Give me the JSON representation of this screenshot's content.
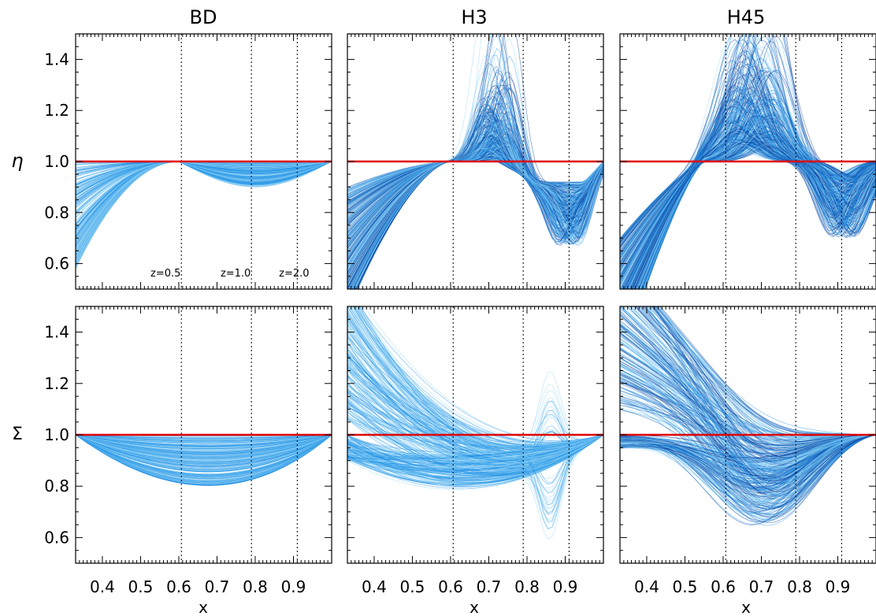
{
  "panels_layout": {
    "rows": [
      "eta",
      "sigma"
    ],
    "cols": [
      "BD",
      "H3",
      "H45"
    ]
  },
  "labels": {
    "col_titles": [
      "BD",
      "H3",
      "H45"
    ],
    "ylabel_top": "η",
    "ylabel_bottom": "Σ",
    "xlabel": "x",
    "redshift_labels": [
      "z=0.5",
      "z=1.0",
      "z=2.0"
    ]
  },
  "colors": {
    "curve_light": "#8fd3f5",
    "curve_mid": "#1e8fe6",
    "curve_dark": "#0a3f9e",
    "reference_line": "#e00000",
    "axis": "#000000"
  },
  "chart_data": [
    {
      "type": "line",
      "panel": "BD-eta",
      "title": "BD",
      "ylabel": "η",
      "xlabel": "",
      "xlim": [
        0.33,
        1.0
      ],
      "ylim": [
        0.5,
        1.5
      ],
      "xticks": [
        0.4,
        0.5,
        0.6,
        0.7,
        0.8,
        0.9
      ],
      "yticks": [
        0.6,
        0.8,
        1.0,
        1.2,
        1.4
      ],
      "redshift_lines_x": [
        0.6067,
        0.79,
        0.91
      ],
      "reference_y": 1.0,
      "model": "BD",
      "series": [
        {
          "x": [
            0.33,
            0.4,
            0.5,
            0.6,
            0.7,
            0.8,
            0.9,
            1.0
          ],
          "y": [
            0.98,
            0.99,
            0.995,
            1.0,
            0.99,
            0.98,
            0.985,
            1.0
          ]
        },
        {
          "x": [
            0.33,
            0.4,
            0.5,
            0.6,
            0.7,
            0.8,
            0.9,
            1.0
          ],
          "y": [
            0.55,
            0.76,
            0.94,
            1.0,
            0.96,
            0.91,
            0.88,
            1.0
          ]
        }
      ]
    },
    {
      "type": "line",
      "panel": "H3-eta",
      "title": "H3",
      "ylabel": "",
      "xlabel": "",
      "xlim": [
        0.33,
        1.0
      ],
      "ylim": [
        0.5,
        1.5
      ],
      "xticks": [
        0.4,
        0.5,
        0.6,
        0.7,
        0.8,
        0.9
      ],
      "yticks": [
        0.6,
        0.8,
        1.0,
        1.2,
        1.4
      ],
      "redshift_lines_x": [
        0.6067,
        0.79,
        0.91
      ],
      "reference_y": 1.0,
      "model": "H3",
      "series": [
        {
          "x": [
            0.33,
            0.45,
            0.55,
            0.6,
            0.7,
            0.8,
            0.9,
            1.0
          ],
          "y": [
            0.5,
            0.75,
            0.94,
            1.0,
            1.05,
            0.95,
            0.88,
            0.93
          ]
        },
        {
          "x": [
            0.33,
            0.45,
            0.55,
            0.6,
            0.7,
            0.8,
            0.9,
            1.0
          ],
          "y": [
            0.6,
            0.85,
            0.97,
            1.0,
            1.33,
            0.8,
            0.55,
            0.75
          ]
        }
      ]
    },
    {
      "type": "line",
      "panel": "H45-eta",
      "title": "H45",
      "ylabel": "",
      "xlabel": "",
      "xlim": [
        0.33,
        1.0
      ],
      "ylim": [
        0.5,
        1.5
      ],
      "xticks": [
        0.4,
        0.5,
        0.6,
        0.7,
        0.8,
        0.9
      ],
      "yticks": [
        0.6,
        0.8,
        1.0,
        1.2,
        1.4
      ],
      "redshift_lines_x": [
        0.6067,
        0.79,
        0.91
      ],
      "reference_y": 1.0,
      "model": "H45",
      "series": [
        {
          "x": [
            0.33,
            0.45,
            0.55,
            0.65,
            0.75,
            0.85,
            0.95,
            1.0
          ],
          "y": [
            0.55,
            0.75,
            1.05,
            1.15,
            1.05,
            0.95,
            0.85,
            0.85
          ]
        },
        {
          "x": [
            0.33,
            0.45,
            0.55,
            0.65,
            0.72,
            0.85,
            0.95,
            1.0
          ],
          "y": [
            0.5,
            0.65,
            0.95,
            1.2,
            1.48,
            0.95,
            0.7,
            0.75
          ]
        }
      ]
    },
    {
      "type": "line",
      "panel": "BD-sigma",
      "title": "",
      "ylabel": "Σ",
      "xlabel": "x",
      "xlim": [
        0.33,
        1.0
      ],
      "ylim": [
        0.5,
        1.5
      ],
      "xticks": [
        0.4,
        0.5,
        0.6,
        0.7,
        0.8,
        0.9
      ],
      "yticks": [
        0.6,
        0.8,
        1.0,
        1.2,
        1.4
      ],
      "redshift_lines_x": [
        0.6067,
        0.79,
        0.91
      ],
      "reference_y": 1.0,
      "model": "BD",
      "series": [
        {
          "x": [
            0.33,
            0.45,
            0.6,
            0.75,
            0.9,
            1.0
          ],
          "y": [
            1.0,
            0.99,
            0.985,
            0.99,
            0.995,
            1.0
          ]
        },
        {
          "x": [
            0.33,
            0.45,
            0.6,
            0.75,
            0.9,
            1.0
          ],
          "y": [
            1.0,
            0.86,
            0.8,
            0.82,
            0.9,
            1.0
          ]
        }
      ]
    },
    {
      "type": "line",
      "panel": "H3-sigma",
      "title": "",
      "ylabel": "",
      "xlabel": "x",
      "xlim": [
        0.33,
        1.0
      ],
      "ylim": [
        0.5,
        1.5
      ],
      "xticks": [
        0.4,
        0.5,
        0.6,
        0.7,
        0.8,
        0.9
      ],
      "yticks": [
        0.6,
        0.8,
        1.0,
        1.2,
        1.4
      ],
      "redshift_lines_x": [
        0.6067,
        0.79,
        0.91
      ],
      "reference_y": 1.0,
      "model": "H3",
      "series": [
        {
          "x": [
            0.33,
            0.45,
            0.6,
            0.75,
            0.9,
            1.0
          ],
          "y": [
            1.5,
            1.2,
            1.0,
            0.93,
            0.92,
            0.98
          ]
        },
        {
          "x": [
            0.33,
            0.45,
            0.6,
            0.75,
            0.9,
            1.0
          ],
          "y": [
            0.98,
            0.88,
            0.83,
            0.83,
            0.88,
            0.97
          ]
        }
      ]
    },
    {
      "type": "line",
      "panel": "H45-sigma",
      "title": "",
      "ylabel": "",
      "xlabel": "x",
      "xlim": [
        0.33,
        1.0
      ],
      "ylim": [
        0.5,
        1.5
      ],
      "xticks": [
        0.4,
        0.5,
        0.6,
        0.7,
        0.8,
        0.9
      ],
      "yticks": [
        0.6,
        0.8,
        1.0,
        1.2,
        1.4
      ],
      "redshift_lines_x": [
        0.6067,
        0.79,
        0.91
      ],
      "reference_y": 1.0,
      "model": "H45",
      "series": [
        {
          "x": [
            0.33,
            0.45,
            0.6,
            0.75,
            0.9,
            1.0
          ],
          "y": [
            1.5,
            1.2,
            1.0,
            0.88,
            0.9,
            0.98
          ]
        },
        {
          "x": [
            0.33,
            0.45,
            0.6,
            0.75,
            0.9,
            1.0
          ],
          "y": [
            1.0,
            0.9,
            0.7,
            0.66,
            0.8,
            0.97
          ]
        }
      ]
    }
  ]
}
